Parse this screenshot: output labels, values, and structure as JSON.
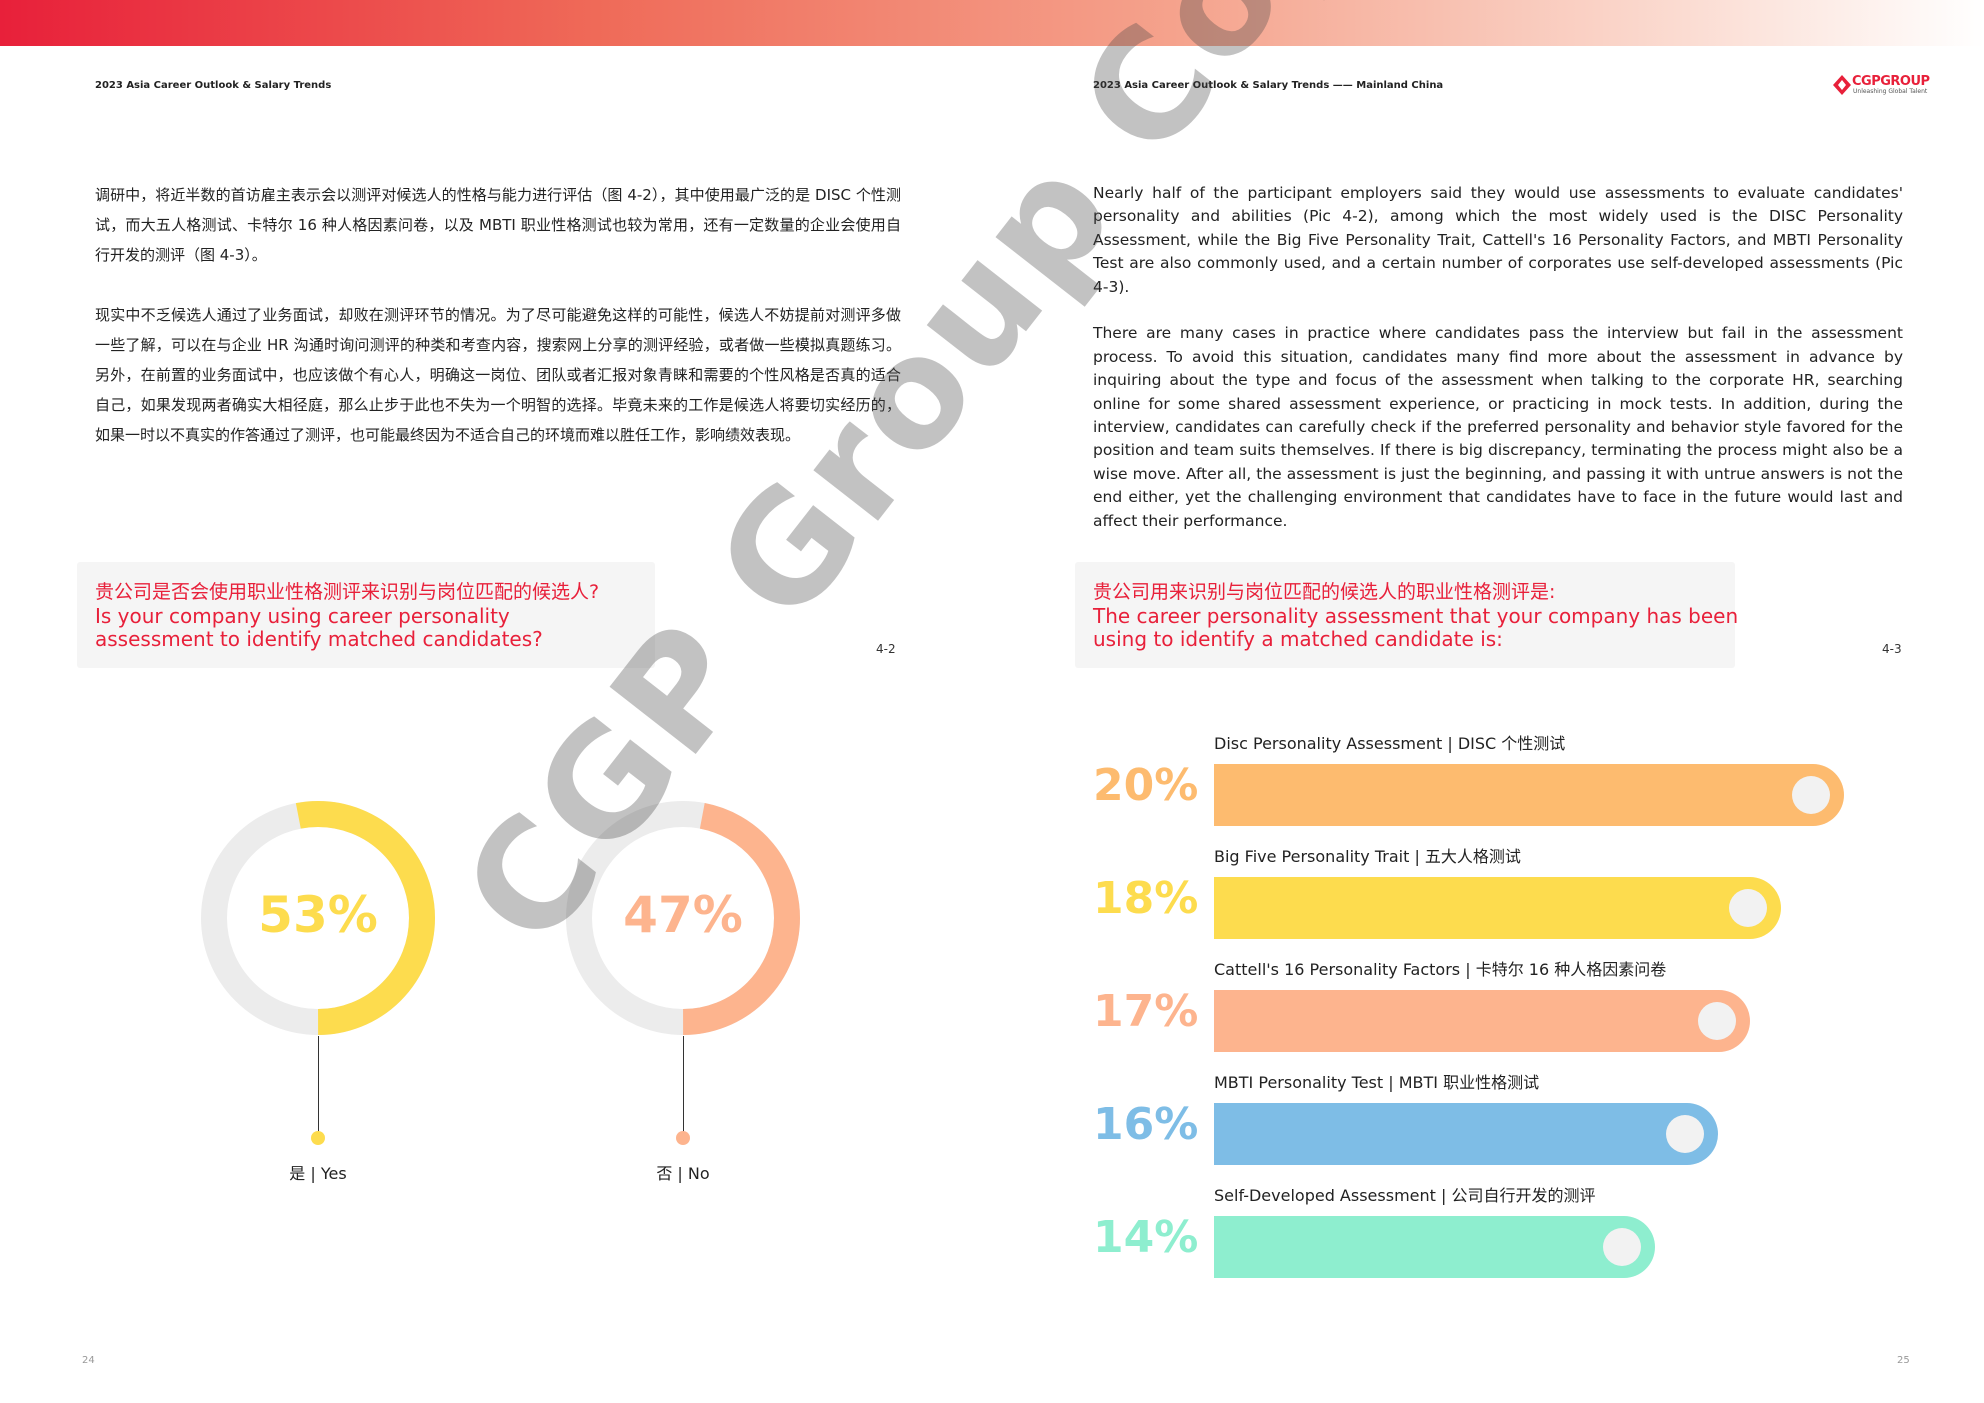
{
  "header": {
    "left": "2023 Asia Career Outlook & Salary Trends",
    "right": "2023 Asia Career Outlook & Salary Trends —— Mainland China",
    "logo_text": "CGPGROUP",
    "logo_tagline": "Unleashing Global Talent"
  },
  "left_page": {
    "para1": "调研中，将近半数的首访雇主表示会以测评对候选人的性格与能力进行评估（图 4-2），其中使用最广泛的是 DISC 个性测试，而大五人格测试、卡特尔 16 种人格因素问卷，以及 MBTI 职业性格测试也较为常用，还有一定数量的企业会使用自行开发的测评（图 4-3）。",
    "para2": "现实中不乏候选人通过了业务面试，却败在测评环节的情况。为了尽可能避免这样的可能性，候选人不妨提前对测评多做一些了解，可以在与企业 HR 沟通时询问测评的种类和考查内容，搜索网上分享的测评经验，或者做一些模拟真题练习。另外，在前置的业务面试中，也应该做个有心人，明确这一岗位、团队或者汇报对象青睐和需要的个性风格是否真的适合自己，如果发现两者确实大相径庭，那么止步于此也不失为一个明智的选择。毕竟未来的工作是候选人将要切实经历的，如果一时以不真实的作答通过了测评，也可能最终因为不适合自己的环境而难以胜任工作，影响绩效表现。",
    "question_zh": "贵公司是否会使用职业性格测评来识别与岗位匹配的候选人?",
    "question_en_line1": "Is your company using career personality",
    "question_en_line2": "assessment to identify matched candidates?",
    "fig_label": "4-2",
    "page_number": "24"
  },
  "right_page": {
    "para1": "Nearly half of the participant employers said they would use assessments to evaluate candidates' personality and abilities (Pic 4-2), among which the most widely used is the DISC Personality Assessment, while the Big Five Personality Trait, Cattell's 16 Personality Factors, and MBTI Personality Test are also commonly used, and a certain number of corporates use self-developed assessments (Pic 4-3).",
    "para2": "There are many cases in practice where candidates pass the interview but fail in the assessment process. To avoid this situation, candidates many find more about the assessment in advance by inquiring about the type and focus of the assessment when talking to the corporate HR, searching online for some shared assessment experience, or practicing in mock tests. In addition, during the interview, candidates can carefully check if the preferred personality and behavior style favored for the position and team suits themselves. If there is big discrepancy, terminating the process might also be a wise move. After all, the assessment is just the beginning, and passing it with untrue answers is not the end either, yet the challenging environment that candidates have to face in the future would last and affect their performance.",
    "question_zh": "贵公司用来识别与岗位匹配的候选人的职业性格测评是:",
    "question_en_line1": "The career personality assessment that your company has been",
    "question_en_line2": "using to identify a matched candidate is:",
    "fig_label": "4-3",
    "page_number": "25"
  },
  "chart_data": [
    {
      "type": "pie",
      "chart_style": "donut",
      "categories": [
        "是 | Yes",
        "否 | No"
      ],
      "values": [
        53,
        47
      ],
      "value_labels": [
        "53%",
        "47%"
      ],
      "colors": [
        "#fddc4e",
        "#fdb48e"
      ],
      "track_color": "#ececec"
    },
    {
      "type": "bar",
      "orientation": "horizontal",
      "categories": [
        "Disc Personality Assessment | DISC 个性测试",
        "Big Five Personality Trait | 五大人格测试",
        "Cattell's 16 Personality Factors | 卡特尔 16 种人格因素问卷",
        "MBTI Personality Test | MBTI 职业性格测试",
        "Self-Developed Assessment | 公司自行开发的测评"
      ],
      "values": [
        20,
        18,
        17,
        16,
        14
      ],
      "value_labels": [
        "20%",
        "18%",
        "17%",
        "16%",
        "14%"
      ],
      "colors": [
        "#fdbb6f",
        "#fddc4e",
        "#fdb48e",
        "#7ebde6",
        "#8eeecf"
      ]
    }
  ],
  "watermark": "CGP Group Copyright"
}
